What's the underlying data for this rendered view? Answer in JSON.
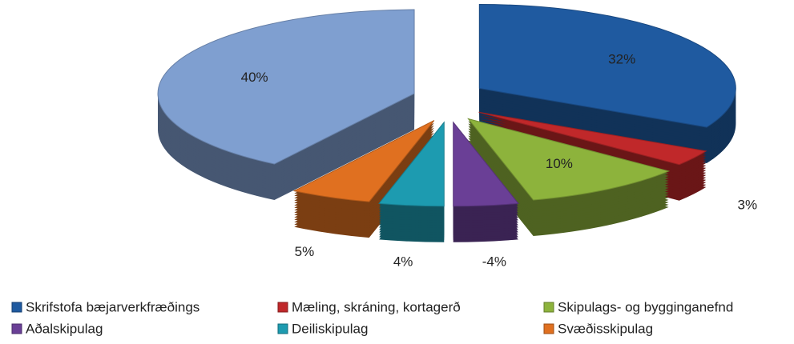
{
  "chart_data": {
    "type": "pie",
    "categories": [
      "Skrifstofa bæjarverkfræðings",
      "Mæling, skráning, kortagerð",
      "Skipulags- og bygginganefnd",
      "Aðalskipulag",
      "Deiliskipulag",
      "Svæðisskipulag",
      null
    ],
    "values": [
      32,
      3,
      10,
      -4,
      4,
      5,
      40
    ],
    "value_labels": [
      "32%",
      "3%",
      "10%",
      "-4%",
      "4%",
      "5%",
      "40%"
    ],
    "colors": [
      "#1f5aa0",
      "#c0282a",
      "#8db33c",
      "#6a3f96",
      "#1d9bb0",
      "#e07020",
      "#7f9fd0"
    ],
    "legend": "bottom"
  }
}
